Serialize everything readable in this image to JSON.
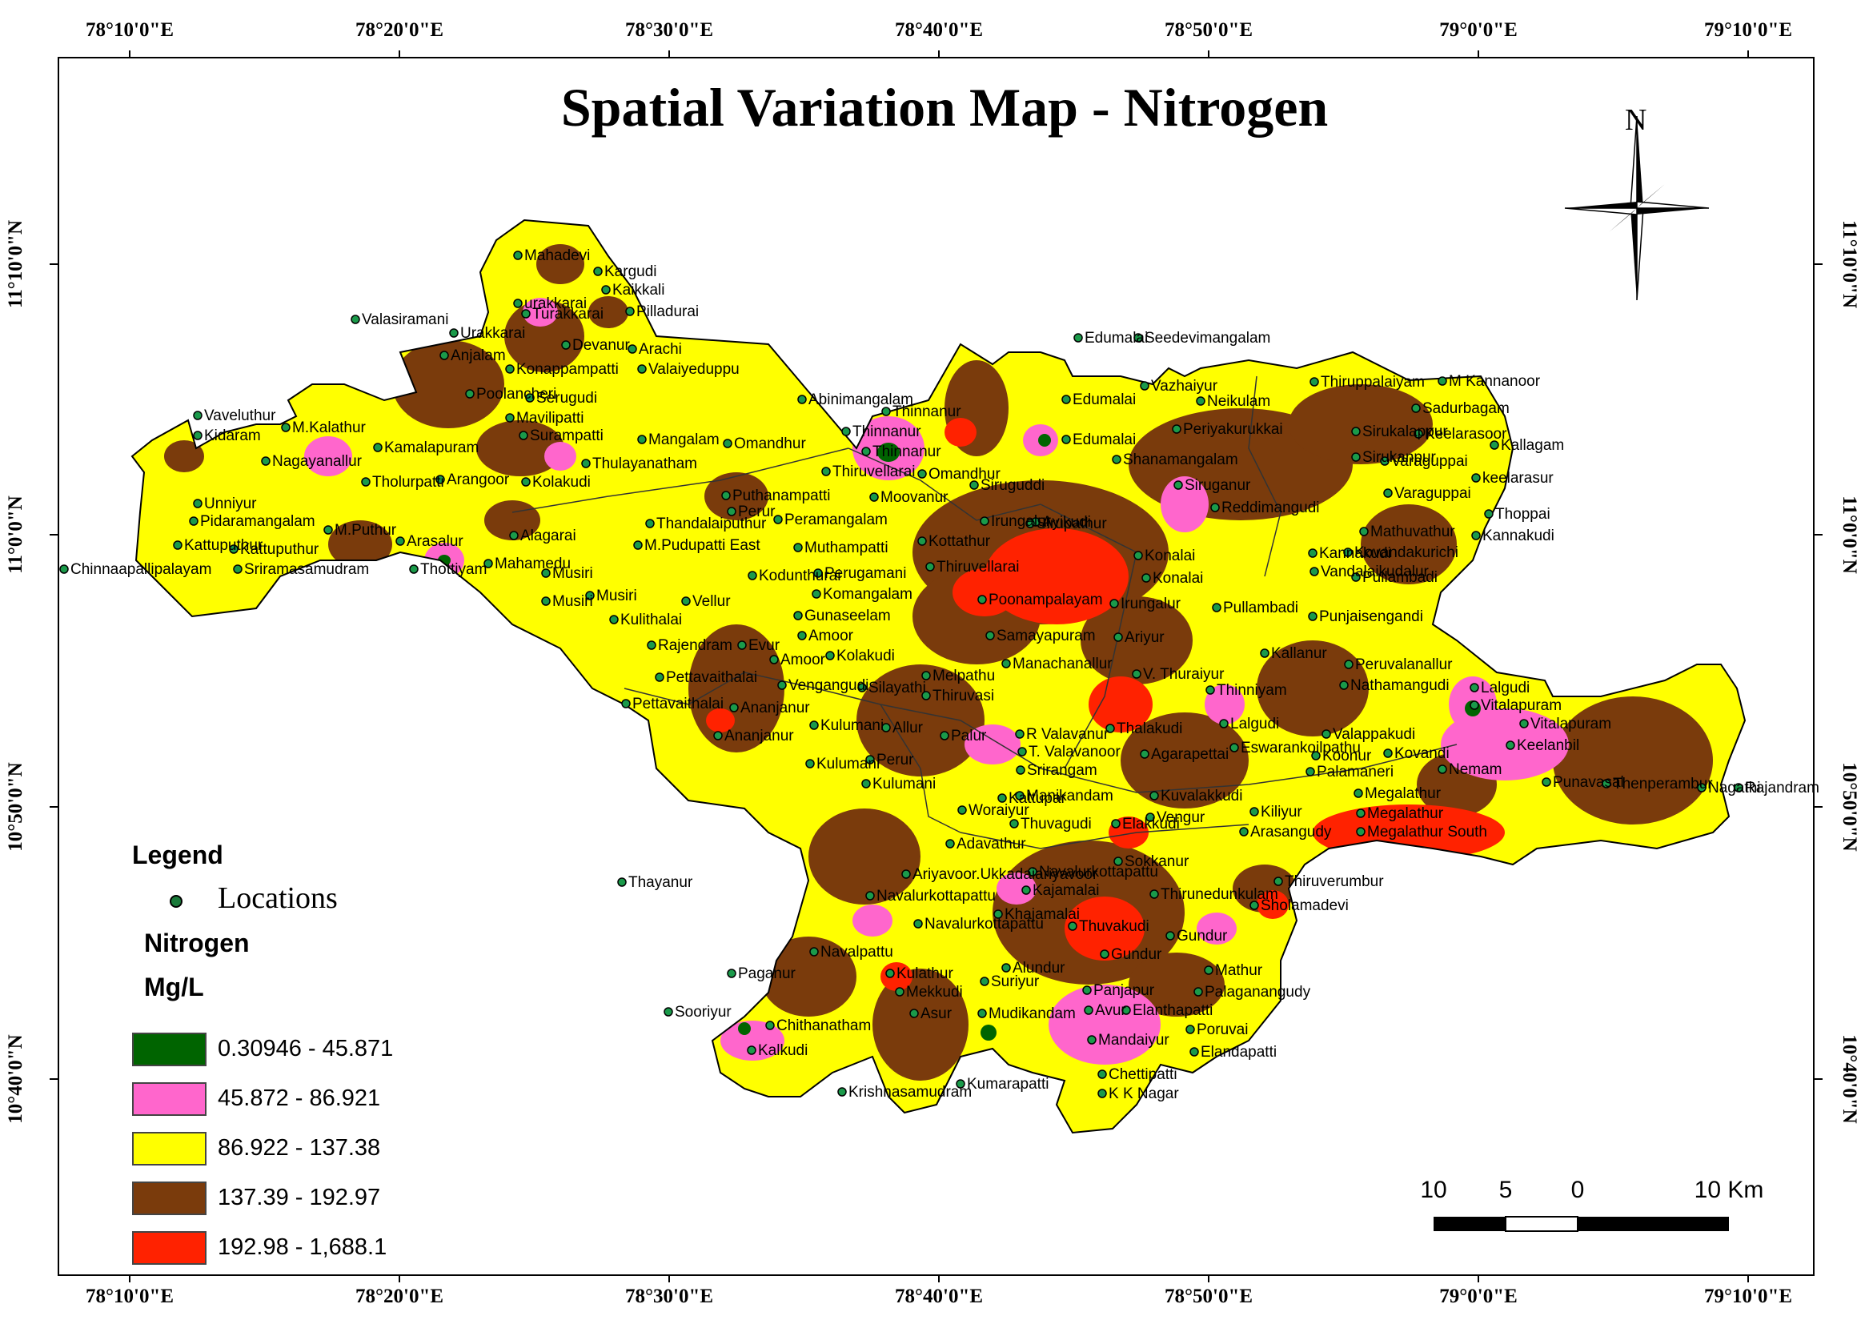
{
  "title": "Spatial Variation Map - Nitrogen",
  "graticule": {
    "top": [
      "78°10'0\"E",
      "78°20'0\"E",
      "78°30'0\"E",
      "78°40'0\"E",
      "78°50'0\"E",
      "79°0'0\"E",
      "79°10'0\"E"
    ],
    "bottom": [
      "78°10'0\"E",
      "78°20'0\"E",
      "78°30'0\"E",
      "78°40'0\"E",
      "78°50'0\"E",
      "79°0'0\"E",
      "79°10'0\"E"
    ],
    "left": [
      "11°10'0\"N",
      "11°0'0\"N",
      "10°50'0\"N",
      "10°40'0\"N"
    ],
    "right": [
      "11°10'0\"N",
      "11°0'0\"N",
      "10°50'0\"N",
      "10°40'0\"N"
    ]
  },
  "legend": {
    "heading": "Legend",
    "locations_label": "Locations",
    "layer_name": "Nitrogen",
    "units": "Mg/L",
    "classes": [
      {
        "label": "0.30946 - 45.871",
        "color": "#006400"
      },
      {
        "label": "45.872 - 86.921",
        "color": "#ff66cc"
      },
      {
        "label": "86.922 - 137.38",
        "color": "#ffff00"
      },
      {
        "label": "137.39 - 192.97",
        "color": "#7a3b0c"
      },
      {
        "label": "192.98 - 1,688.1",
        "color": "#ff2200"
      }
    ]
  },
  "north_arrow": {
    "label": "N"
  },
  "scale_bar": {
    "labels": [
      "10",
      "5",
      "0",
      "10 Km"
    ]
  },
  "places": [
    "Mahadevi",
    "Kargudi",
    "urakkarai",
    "Kaikkali",
    "Turakkarai",
    "Pilladurai",
    "Valasiramani",
    "Urakkarai",
    "Devanur",
    "Arachi",
    "Anjalam",
    "Konappampatti",
    "Valaiyeduppu",
    "Poolancheri",
    "Serugudi",
    "Mavilipatti",
    "Vaveluthur",
    "M.Kalathur",
    "Kidaram",
    "Surampatti",
    "Mangalam",
    "Omandhur",
    "Kamalapuram",
    "Nagayanallur",
    "Thulayanatham",
    "Arangoor",
    "Tholurpatti",
    "Kolakudi",
    "Unniyur",
    "Puthanampatti",
    "Pidaramangalam",
    "M.Puthur",
    "Alagarai",
    "Kattuputhur",
    "Kattuputhur",
    "Arasalur",
    "Chinnaapallipalayam",
    "Sriramasamudram",
    "Thottiyam",
    "Mahamedu",
    "Musiri",
    "Musiri",
    "Musiri",
    "Thandalaiputhur",
    "M.Pudupatti East",
    "Vellur",
    "Kulithalai",
    "Rajendram",
    "Pettavaithalai",
    "Pettavaithalai",
    "Evur",
    "Abinimangalam",
    "Thinnanur",
    "Thinnanur",
    "Thinnanur",
    "Thiruvellarai",
    "Omandhur",
    "Moovanur",
    "Peramangalam",
    "Perur",
    "Muthampatti",
    "Kodunthurai",
    "Perugamani",
    "Komangalam",
    "Gunaseelam",
    "Amoor",
    "Amoor",
    "Kolakudi",
    "Vengangudi",
    "Silayathi",
    "Ananjanur",
    "Ananjanur",
    "Kulumani",
    "Kulumani",
    "Kulumani",
    "Perur",
    "Allur",
    "Melpathu",
    "Thiruvasi",
    "Palur",
    "Edumalai",
    "Seedevimangalam",
    "Vazhaiyur",
    "Edumalai",
    "Edumalai",
    "Siruguddi",
    "Irungalur",
    "Ayikudi",
    "Sirupathur",
    "Kottathur",
    "Thiruvellarai",
    "Poonampalayam",
    "Samayapuram",
    "Irungalur",
    "Manachanallur",
    "Ariyur",
    "V. Thuraiyur",
    "Thalakudi",
    "R Valavanur",
    "T. Valavanoor",
    "Srirangam",
    "Agarapettai",
    "Periyakurukkai",
    "Neikulam",
    "Thiruppalaiyam",
    "M Kannanoor",
    "Sadurbagam",
    "Sirukalappur",
    "Keelarasoor",
    "Kallagam",
    "Shanamangalam",
    "Sirukanpur",
    "Varaguppai",
    "Siruganur",
    "Varaguppai",
    "keelarasur",
    "Reddimangudi",
    "Thoppai",
    "Mathuvathur",
    "Kannakudi",
    "Kannakudi",
    "Konalai",
    "Konalai",
    "Vandalaikudalur",
    "Kovandakurichi",
    "Pullambadi",
    "Pullambadi",
    "Punjaisengandi",
    "Kallanur",
    "Peruvalanallur",
    "Nathamangudi",
    "Thinniyam",
    "Lalgudi",
    "Lalgudi",
    "Vitalapuram",
    "Vitalapuram",
    "Valappakudi",
    "Keelanbil",
    "Eswarankoilpathu",
    "Koonur",
    "Kovandi",
    "Nemam",
    "Palamaneri",
    "Punavasal",
    "Thenperambur",
    "Nagathi",
    "Rajandram",
    "Megalathur",
    "Megalathur",
    "Megalathur South",
    "Kiliyur",
    "Kuvalakkudi",
    "Vengur",
    "Arasangudy",
    "Elakkudi",
    "Thuvagudi",
    "Kattupar",
    "Woraiyur",
    "Adavathur",
    "Thayanur",
    "Ariyavoor.Ukkadaiariyavoor",
    "Navalurkottapattu",
    "Navalurkottapattu",
    "Navalurkottapattu",
    "Kajamalai",
    "Khajamalai",
    "Sokkanur",
    "Thiruverumbur",
    "Thirunedunkulam",
    "Sholamadevi",
    "Thuvakudi",
    "Gundur",
    "Gundur",
    "Navalpattu",
    "Paganur",
    "Kulathur",
    "Alundur",
    "Mekkudi",
    "Panjapur",
    "Mathur",
    "Palaganangudy",
    "Asur",
    "Mudikandam",
    "Avur",
    "Elanthapatti",
    "Sooriyur",
    "Chithanatham",
    "Kalkudi",
    "Poruvai",
    "Mandaiyur",
    "Elandapatti",
    "Chettipatti",
    "K K Nagar",
    "Krishnasamudram",
    "Kumarapatti",
    "Suriyur",
    "Manikandam",
    "Thiruvasi"
  ]
}
